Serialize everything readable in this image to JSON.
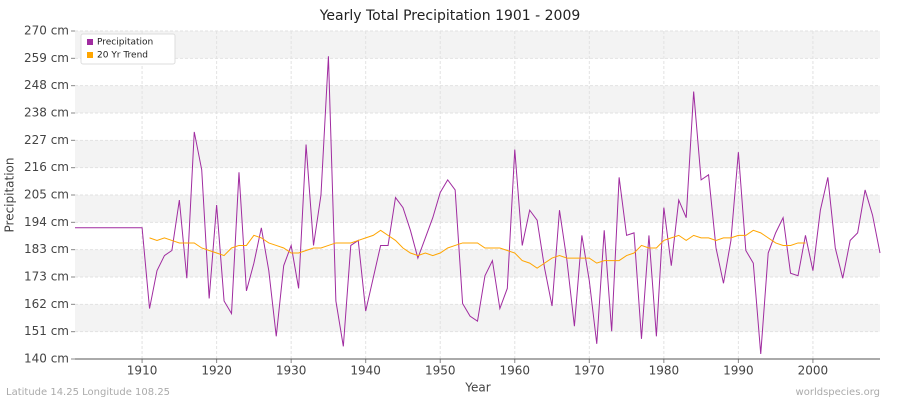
{
  "chart_data": {
    "type": "line",
    "title": "Yearly Total Precipitation 1901 - 2009",
    "x_label": "Year",
    "y_label": "Precipitation",
    "footer_left": "Latitude 14.25 Longitude 108.25",
    "footer_right": "worldspecies.org",
    "legend_position": "upper-left",
    "grid": true,
    "x": [
      1901,
      1902,
      1903,
      1904,
      1905,
      1906,
      1907,
      1908,
      1909,
      1910,
      1911,
      1912,
      1913,
      1914,
      1915,
      1916,
      1917,
      1918,
      1919,
      1920,
      1921,
      1922,
      1923,
      1924,
      1925,
      1926,
      1927,
      1928,
      1929,
      1930,
      1931,
      1932,
      1933,
      1934,
      1935,
      1936,
      1937,
      1938,
      1939,
      1940,
      1941,
      1942,
      1943,
      1944,
      1945,
      1946,
      1947,
      1948,
      1949,
      1950,
      1951,
      1952,
      1953,
      1954,
      1955,
      1956,
      1957,
      1958,
      1959,
      1960,
      1961,
      1962,
      1963,
      1964,
      1965,
      1966,
      1967,
      1968,
      1969,
      1970,
      1971,
      1972,
      1973,
      1974,
      1975,
      1976,
      1977,
      1978,
      1979,
      1980,
      1981,
      1982,
      1983,
      1984,
      1985,
      1986,
      1987,
      1988,
      1989,
      1990,
      1991,
      1992,
      1993,
      1994,
      1995,
      1996,
      1997,
      1998,
      1999,
      2000,
      2001,
      2002,
      2003,
      2004,
      2005,
      2006,
      2007,
      2008,
      2009
    ],
    "xlim": [
      1901,
      2009
    ],
    "xticks": [
      1910,
      1920,
      1930,
      1940,
      1950,
      1960,
      1970,
      1980,
      1990,
      2000
    ],
    "ylim": [
      140,
      270
    ],
    "yticks": [
      {
        "value": 140,
        "label": "140 cm"
      },
      {
        "value": 150.83,
        "label": "151 cm"
      },
      {
        "value": 161.67,
        "label": "162 cm"
      },
      {
        "value": 172.5,
        "label": "173 cm"
      },
      {
        "value": 183.33,
        "label": "183 cm"
      },
      {
        "value": 194.17,
        "label": "194 cm"
      },
      {
        "value": 205,
        "label": "205 cm"
      },
      {
        "value": 215.83,
        "label": "216 cm"
      },
      {
        "value": 226.67,
        "label": "227 cm"
      },
      {
        "value": 237.5,
        "label": "238 cm"
      },
      {
        "value": 248.33,
        "label": "248 cm"
      },
      {
        "value": 259.17,
        "label": "259 cm"
      },
      {
        "value": 270,
        "label": "270 cm"
      }
    ],
    "series": [
      {
        "name": "Precipitation",
        "color": "#a02ca0",
        "values": [
          192,
          192,
          192,
          192,
          192,
          192,
          192,
          192,
          192,
          192,
          160,
          175,
          181,
          183,
          203,
          172,
          230,
          215,
          164,
          201,
          163,
          158,
          214,
          167,
          178,
          192,
          175,
          149,
          177,
          185,
          168,
          225,
          185,
          205,
          260,
          163,
          145,
          185,
          187,
          159,
          172,
          185,
          185,
          204,
          200,
          191,
          180,
          188,
          196,
          206,
          211,
          207,
          162,
          157,
          155,
          173,
          179,
          160,
          168,
          223,
          185,
          199,
          195,
          176,
          161,
          199,
          179,
          153,
          189,
          171,
          146,
          191,
          151,
          212,
          189,
          190,
          148,
          189,
          149,
          200,
          177,
          203,
          196,
          246,
          211,
          213,
          184,
          170,
          187,
          222,
          183,
          178,
          142,
          182,
          190,
          196,
          174,
          173,
          189,
          175,
          199,
          212,
          184,
          172,
          187,
          190,
          207,
          197,
          182
        ]
      },
      {
        "name": "20 Yr Trend",
        "color": "#ffa500",
        "values": [
          null,
          null,
          null,
          null,
          null,
          null,
          null,
          null,
          null,
          null,
          188,
          187,
          188,
          187,
          186,
          186,
          186,
          184,
          183,
          182,
          181,
          184,
          185,
          185,
          189,
          188,
          186,
          185,
          184,
          182,
          182,
          183,
          184,
          184,
          185,
          186,
          186,
          186,
          187,
          188,
          189,
          191,
          189,
          187,
          184,
          182,
          181,
          182,
          181,
          182,
          184,
          185,
          186,
          186,
          186,
          184,
          184,
          184,
          183,
          182,
          179,
          178,
          176,
          178,
          180,
          181,
          180,
          180,
          180,
          180,
          178,
          179,
          179,
          179,
          181,
          182,
          185,
          184,
          184,
          187,
          188,
          189,
          187,
          189,
          188,
          188,
          187,
          188,
          188,
          189,
          189,
          191,
          190,
          188,
          186,
          185,
          185,
          186,
          186,
          null,
          null,
          null,
          null,
          null,
          null,
          null,
          null,
          null,
          null
        ]
      }
    ]
  }
}
